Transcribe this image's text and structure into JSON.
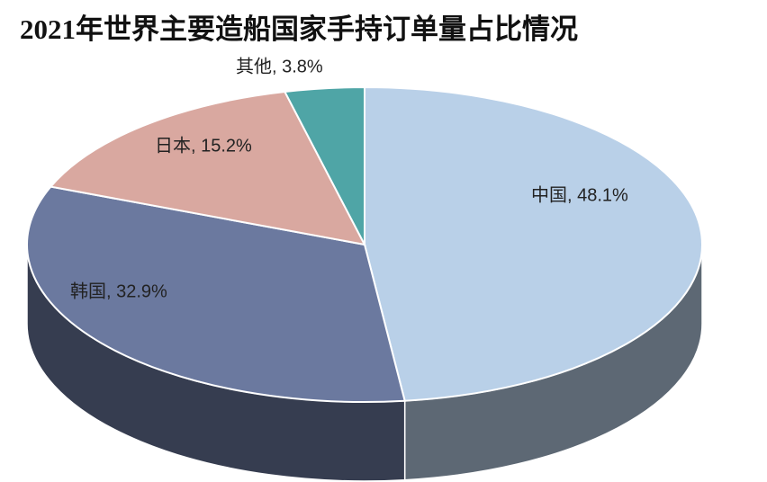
{
  "chart_data": {
    "type": "pie3d",
    "title": "2021年世界主要造船国家手持订单量占比情况",
    "values": [
      48.1,
      32.9,
      15.2,
      3.8
    ],
    "value_labels": [
      "中国, 48.1%",
      "韩国, 32.9%",
      "日本, 15.2%",
      "其他, 3.8%"
    ],
    "colors": [
      "#b9d0e8",
      "#6b799f",
      "#d9a8a0",
      "#4fa5a6"
    ]
  }
}
